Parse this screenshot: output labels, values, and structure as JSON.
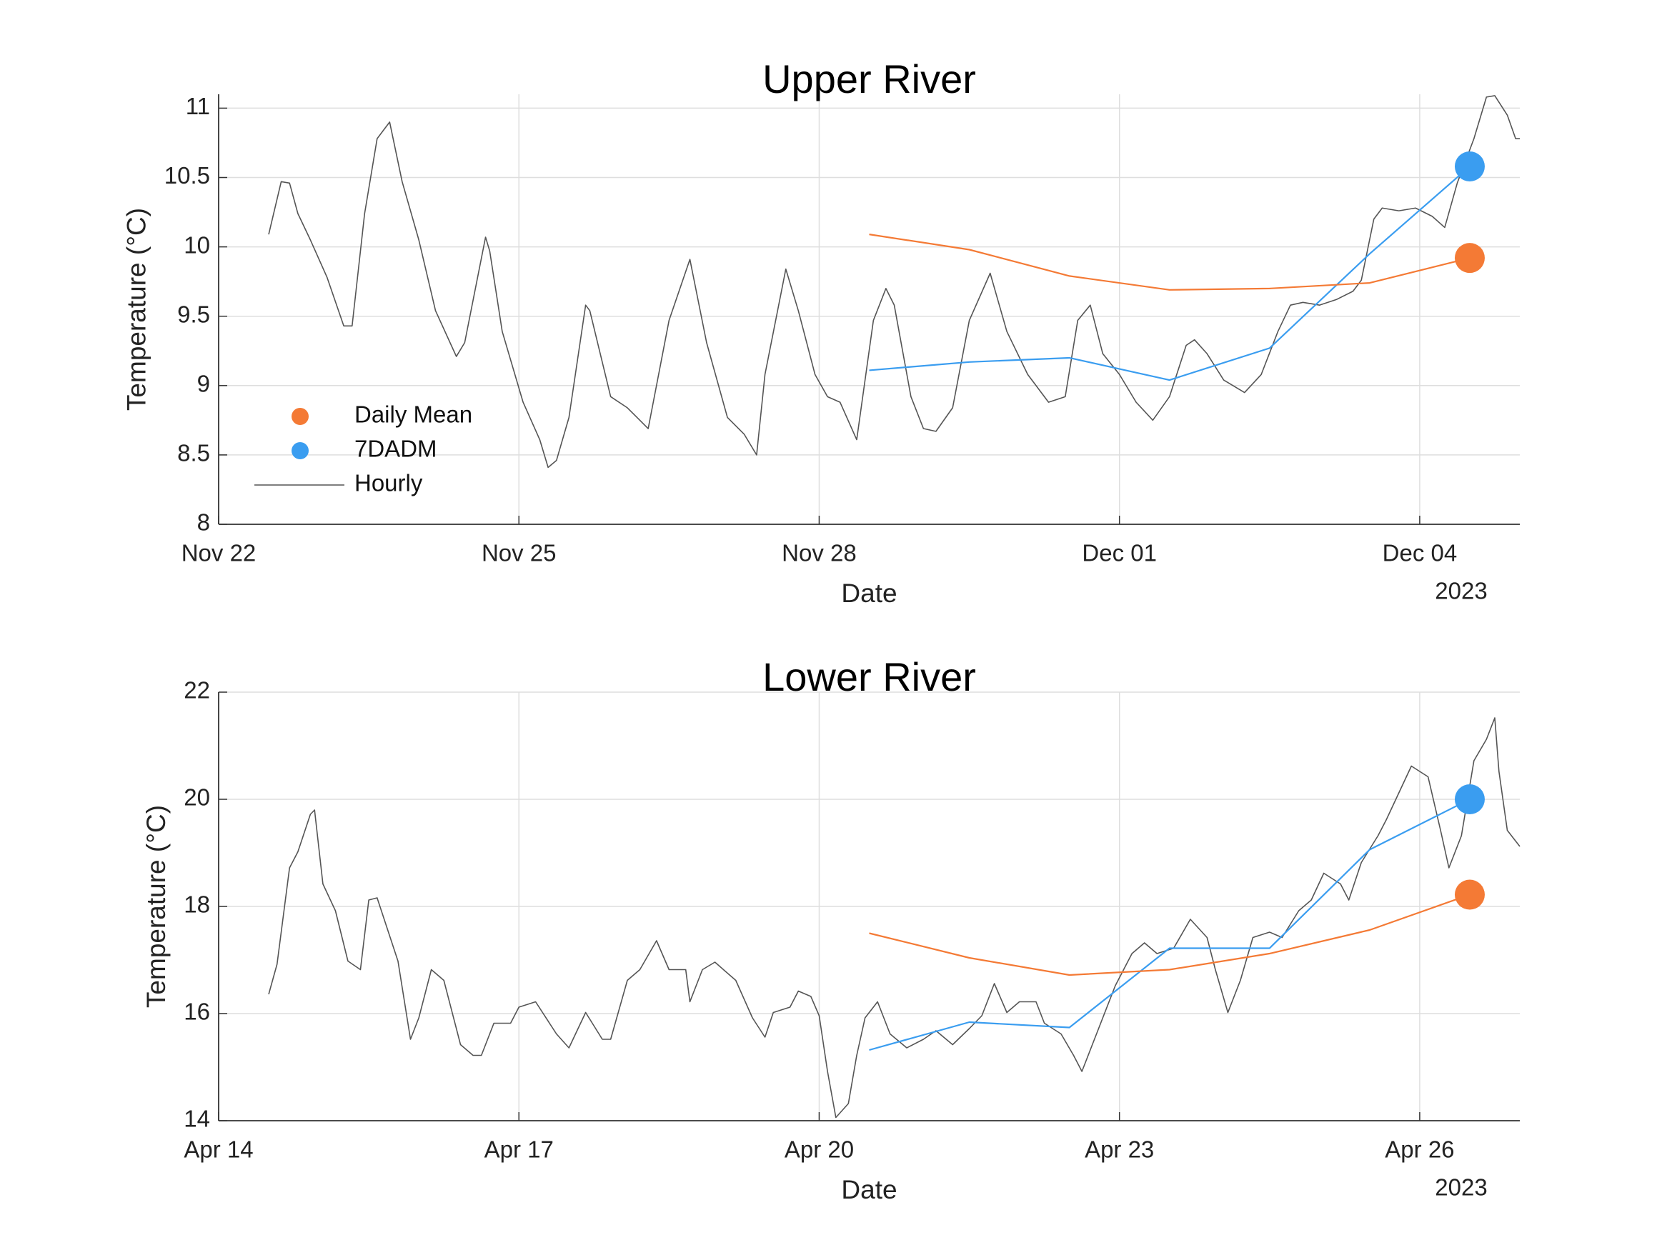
{
  "chart_data": [
    {
      "type": "line",
      "title": "Upper River",
      "xlabel": "Date",
      "ylabel": "Temperature (°C)",
      "x_year_label": "2023",
      "xlim": [
        "2023-11-22 00:00",
        "2023-12-05 00:00"
      ],
      "xticks": [
        {
          "value": "2023-11-22 00:00",
          "label": "Nov 22"
        },
        {
          "value": "2023-11-25 00:00",
          "label": "Nov 25"
        },
        {
          "value": "2023-11-28 00:00",
          "label": "Nov 28"
        },
        {
          "value": "2023-12-01 00:00",
          "label": "Dec 01"
        },
        {
          "value": "2023-12-04 00:00",
          "label": "Dec 04"
        }
      ],
      "ylim": [
        8,
        11.1
      ],
      "yticks": [
        8,
        8.5,
        9,
        9.5,
        10,
        10.5,
        11
      ],
      "grid": true,
      "legend": "lower left",
      "series": [
        {
          "name": "Daily Mean",
          "color": "#f47a35",
          "marker_at_end": true,
          "x": [
            "2023-11-28 12:00",
            "2023-11-29 12:00",
            "2023-11-30 12:00",
            "2023-12-01 12:00",
            "2023-12-02 12:00",
            "2023-12-03 12:00",
            "2023-12-04 12:00"
          ],
          "values": [
            10.09,
            9.98,
            9.79,
            9.69,
            9.7,
            9.74,
            9.92
          ]
        },
        {
          "name": "7DADM",
          "color": "#3a9df0",
          "marker_at_end": true,
          "x": [
            "2023-11-28 12:00",
            "2023-11-29 12:00",
            "2023-11-30 12:00",
            "2023-12-01 12:00",
            "2023-12-02 12:00",
            "2023-12-03 12:00",
            "2023-12-04 12:00"
          ],
          "values": [
            9.11,
            9.17,
            9.2,
            9.04,
            9.27,
            9.95,
            10.58
          ]
        },
        {
          "name": "Hourly",
          "color": "#555555",
          "marker_at_end": false,
          "x": [
            "2023-11-22 12:00",
            "2023-11-22 15:00",
            "2023-11-22 17:00",
            "2023-11-22 19:00",
            "2023-11-22 22:00",
            "2023-11-23 02:00",
            "2023-11-23 06:00",
            "2023-11-23 08:00",
            "2023-11-23 11:00",
            "2023-11-23 14:00",
            "2023-11-23 17:00",
            "2023-11-23 20:00",
            "2023-11-24 00:00",
            "2023-11-24 04:00",
            "2023-11-24 09:00",
            "2023-11-24 11:00",
            "2023-11-24 16:00",
            "2023-11-24 17:00",
            "2023-11-24 20:00",
            "2023-11-25 01:00",
            "2023-11-25 05:00",
            "2023-11-25 07:00",
            "2023-11-25 09:00",
            "2023-11-25 12:00",
            "2023-11-25 16:00",
            "2023-11-25 17:00",
            "2023-11-25 22:00",
            "2023-11-26 02:00",
            "2023-11-26 07:00",
            "2023-11-26 12:00",
            "2023-11-26 17:00",
            "2023-11-26 21:00",
            "2023-11-27 02:00",
            "2023-11-27 06:00",
            "2023-11-27 09:00",
            "2023-11-27 11:00",
            "2023-11-27 16:00",
            "2023-11-27 19:00",
            "2023-11-27 23:00",
            "2023-11-28 02:00",
            "2023-11-28 05:00",
            "2023-11-28 09:00",
            "2023-11-28 13:00",
            "2023-11-28 16:00",
            "2023-11-28 18:00",
            "2023-11-28 22:00",
            "2023-11-29 01:00",
            "2023-11-29 04:00",
            "2023-11-29 08:00",
            "2023-11-29 12:00",
            "2023-11-29 17:00",
            "2023-11-29 21:00",
            "2023-11-30 02:00",
            "2023-11-30 07:00",
            "2023-11-30 11:00",
            "2023-11-30 14:00",
            "2023-11-30 17:00",
            "2023-11-30 20:00",
            "2023-12-01 00:00",
            "2023-12-01 04:00",
            "2023-12-01 08:00",
            "2023-12-01 12:00",
            "2023-12-01 16:00",
            "2023-12-01 18:00",
            "2023-12-01 21:00",
            "2023-12-02 01:00",
            "2023-12-02 06:00",
            "2023-12-02 10:00",
            "2023-12-02 14:00",
            "2023-12-02 17:00",
            "2023-12-02 20:00",
            "2023-12-03 00:00",
            "2023-12-03 04:00",
            "2023-12-03 08:00",
            "2023-12-03 10:00",
            "2023-12-03 13:00",
            "2023-12-03 15:00",
            "2023-12-03 19:00",
            "2023-12-03 23:00",
            "2023-12-04 03:00",
            "2023-12-04 06:00",
            "2023-12-04 09:00",
            "2023-12-04 13:00",
            "2023-12-04 16:00",
            "2023-12-04 18:00",
            "2023-12-04 21:00",
            "2023-12-04 23:00",
            "2023-12-05 00:00"
          ],
          "values": [
            10.09,
            10.47,
            10.46,
            10.24,
            10.05,
            9.78,
            9.43,
            9.43,
            10.24,
            10.78,
            10.9,
            10.47,
            10.05,
            9.54,
            9.21,
            9.31,
            10.07,
            9.97,
            9.39,
            8.88,
            8.61,
            8.41,
            8.46,
            8.77,
            9.58,
            9.54,
            8.92,
            8.84,
            8.69,
            9.47,
            9.91,
            9.31,
            8.77,
            8.65,
            8.5,
            9.08,
            9.84,
            9.54,
            9.08,
            8.92,
            8.88,
            8.61,
            9.47,
            9.7,
            9.58,
            8.92,
            8.69,
            8.67,
            8.84,
            9.47,
            9.81,
            9.39,
            9.08,
            8.88,
            8.92,
            9.47,
            9.58,
            9.23,
            9.08,
            8.88,
            8.75,
            8.92,
            9.29,
            9.33,
            9.23,
            9.04,
            8.95,
            9.08,
            9.39,
            9.58,
            9.6,
            9.58,
            9.62,
            9.68,
            9.76,
            10.2,
            10.28,
            10.26,
            10.28,
            10.22,
            10.14,
            10.46,
            10.78,
            11.08,
            11.09,
            10.95,
            10.78,
            10.78
          ]
        }
      ]
    },
    {
      "type": "line",
      "title": "Lower River",
      "xlabel": "Date",
      "ylabel": "Temperature (°C)",
      "x_year_label": "2023",
      "xlim": [
        "2023-04-14 00:00",
        "2023-04-27 00:00"
      ],
      "xticks": [
        {
          "value": "2023-04-14 00:00",
          "label": "Apr 14"
        },
        {
          "value": "2023-04-17 00:00",
          "label": "Apr 17"
        },
        {
          "value": "2023-04-20 00:00",
          "label": "Apr 20"
        },
        {
          "value": "2023-04-23 00:00",
          "label": "Apr 23"
        },
        {
          "value": "2023-04-26 00:00",
          "label": "Apr 26"
        }
      ],
      "ylim": [
        14,
        22
      ],
      "yticks": [
        14,
        16,
        18,
        20,
        22
      ],
      "grid": true,
      "series": [
        {
          "name": "Daily Mean",
          "color": "#f47a35",
          "marker_at_end": true,
          "x": [
            "2023-04-20 12:00",
            "2023-04-21 12:00",
            "2023-04-22 12:00",
            "2023-04-23 12:00",
            "2023-04-24 12:00",
            "2023-04-25 12:00",
            "2023-04-26 12:00"
          ],
          "values": [
            17.5,
            17.04,
            16.72,
            16.82,
            17.12,
            17.56,
            18.22
          ]
        },
        {
          "name": "7DADM",
          "color": "#3a9df0",
          "marker_at_end": true,
          "x": [
            "2023-04-20 12:00",
            "2023-04-21 12:00",
            "2023-04-22 12:00",
            "2023-04-23 12:00",
            "2023-04-24 12:00",
            "2023-04-25 12:00",
            "2023-04-26 12:00"
          ],
          "values": [
            15.32,
            15.84,
            15.74,
            17.22,
            17.22,
            19.06,
            20.0
          ]
        },
        {
          "name": "Hourly",
          "color": "#555555",
          "marker_at_end": false,
          "x": [
            "2023-04-14 12:00",
            "2023-04-14 14:00",
            "2023-04-14 17:00",
            "2023-04-14 19:00",
            "2023-04-14 22:00",
            "2023-04-14 23:00",
            "2023-04-15 01:00",
            "2023-04-15 04:00",
            "2023-04-15 07:00",
            "2023-04-15 10:00",
            "2023-04-15 12:00",
            "2023-04-15 14:00",
            "2023-04-15 19:00",
            "2023-04-15 22:00",
            "2023-04-16 00:00",
            "2023-04-16 03:00",
            "2023-04-16 06:00",
            "2023-04-16 10:00",
            "2023-04-16 13:00",
            "2023-04-16 15:00",
            "2023-04-16 18:00",
            "2023-04-16 22:00",
            "2023-04-17 00:00",
            "2023-04-17 04:00",
            "2023-04-17 09:00",
            "2023-04-17 12:00",
            "2023-04-17 16:00",
            "2023-04-17 20:00",
            "2023-04-17 22:00",
            "2023-04-18 02:00",
            "2023-04-18 05:00",
            "2023-04-18 09:00",
            "2023-04-18 12:00",
            "2023-04-18 16:00",
            "2023-04-18 17:00",
            "2023-04-18 20:00",
            "2023-04-18 23:00",
            "2023-04-19 04:00",
            "2023-04-19 08:00",
            "2023-04-19 11:00",
            "2023-04-19 13:00",
            "2023-04-19 17:00",
            "2023-04-19 19:00",
            "2023-04-19 22:00",
            "2023-04-20 00:00",
            "2023-04-20 02:00",
            "2023-04-20 04:00",
            "2023-04-20 07:00",
            "2023-04-20 09:00",
            "2023-04-20 11:00",
            "2023-04-20 14:00",
            "2023-04-20 17:00",
            "2023-04-20 21:00",
            "2023-04-21 01:00",
            "2023-04-21 04:00",
            "2023-04-21 08:00",
            "2023-04-21 12:00",
            "2023-04-21 15:00",
            "2023-04-21 18:00",
            "2023-04-21 21:00",
            "2023-04-22 00:00",
            "2023-04-22 04:00",
            "2023-04-22 06:00",
            "2023-04-22 10:00",
            "2023-04-22 13:00",
            "2023-04-22 15:00",
            "2023-04-22 19:00",
            "2023-04-22 23:00",
            "2023-04-23 03:00",
            "2023-04-23 06:00",
            "2023-04-23 09:00",
            "2023-04-23 13:00",
            "2023-04-23 17:00",
            "2023-04-23 21:00",
            "2023-04-23 23:00",
            "2023-04-24 02:00",
            "2023-04-24 05:00",
            "2023-04-24 08:00",
            "2023-04-24 12:00",
            "2023-04-24 15:00",
            "2023-04-24 19:00",
            "2023-04-24 22:00",
            "2023-04-25 01:00",
            "2023-04-25 05:00",
            "2023-04-25 07:00",
            "2023-04-25 10:00",
            "2023-04-25 14:00",
            "2023-04-25 16:00",
            "2023-04-25 19:00",
            "2023-04-25 22:00",
            "2023-04-26 02:00",
            "2023-04-26 05:00",
            "2023-04-26 07:00",
            "2023-04-26 10:00",
            "2023-04-26 13:00",
            "2023-04-26 16:00",
            "2023-04-26 18:00",
            "2023-04-26 19:00",
            "2023-04-26 21:00",
            "2023-04-27 00:00"
          ],
          "values": [
            16.36,
            16.92,
            18.72,
            19.02,
            19.72,
            19.8,
            18.42,
            17.92,
            16.98,
            16.82,
            18.12,
            18.16,
            16.98,
            15.52,
            15.92,
            16.82,
            16.62,
            15.42,
            15.22,
            15.22,
            15.82,
            15.82,
            16.12,
            16.22,
            15.62,
            15.36,
            16.02,
            15.52,
            15.52,
            16.62,
            16.82,
            17.36,
            16.82,
            16.82,
            16.22,
            16.82,
            16.96,
            16.62,
            15.92,
            15.56,
            16.02,
            16.12,
            16.42,
            16.32,
            15.96,
            14.92,
            14.06,
            14.32,
            15.22,
            15.92,
            16.22,
            15.62,
            15.36,
            15.52,
            15.68,
            15.42,
            15.72,
            15.96,
            16.56,
            16.02,
            16.22,
            16.22,
            15.82,
            15.62,
            15.22,
            14.92,
            15.72,
            16.52,
            17.12,
            17.32,
            17.12,
            17.22,
            17.76,
            17.42,
            16.82,
            16.02,
            16.62,
            17.42,
            17.52,
            17.42,
            17.92,
            18.12,
            18.62,
            18.42,
            18.12,
            18.82,
            19.32,
            19.62,
            20.12,
            20.62,
            20.42,
            19.42,
            18.72,
            19.32,
            20.72,
            21.12,
            21.52,
            20.52,
            19.42,
            19.12
          ]
        }
      ]
    }
  ]
}
